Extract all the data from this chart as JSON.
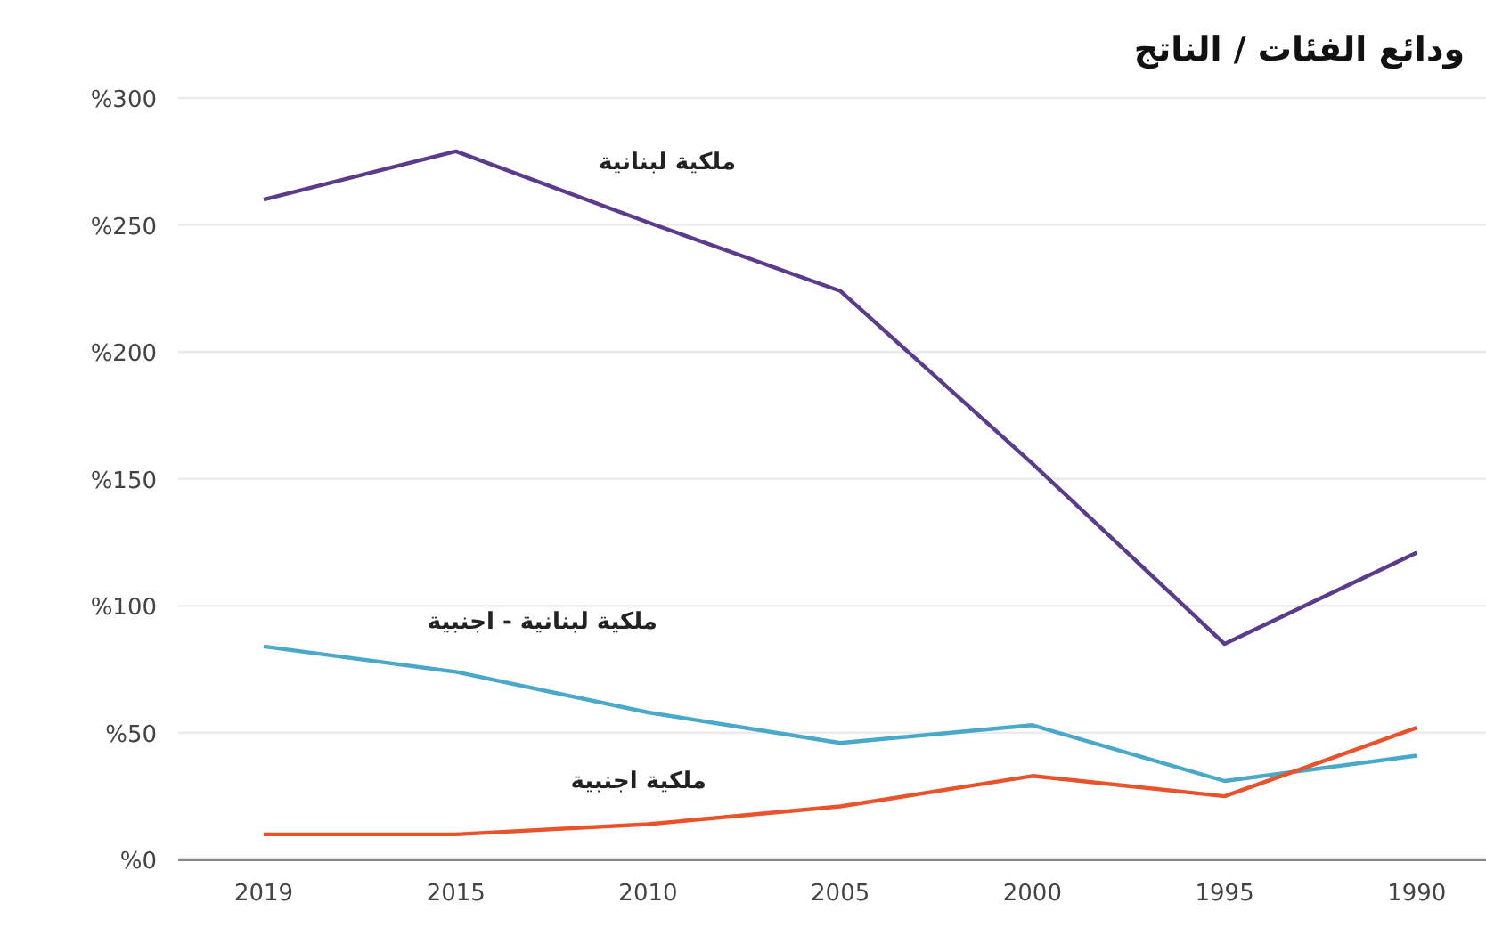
{
  "chart_data": {
    "type": "line",
    "title": "ودائع الفئات / الناتج",
    "categories": [
      "2019",
      "2015",
      "2010",
      "2005",
      "2000",
      "1995",
      "1990"
    ],
    "ylim": [
      0,
      300
    ],
    "yticks": [
      {
        "value": 0,
        "label": "%0"
      },
      {
        "value": 50,
        "label": "%50"
      },
      {
        "value": 100,
        "label": "%100"
      },
      {
        "value": 150,
        "label": "%150"
      },
      {
        "value": 200,
        "label": "%200"
      },
      {
        "value": 250,
        "label": "%250"
      },
      {
        "value": 300,
        "label": "%300"
      }
    ],
    "grid": "y",
    "marker": "none",
    "line_style": "solid",
    "series": [
      {
        "name": "ملكية لبنانية",
        "color": "#5b3b8c",
        "values": [
          260,
          279,
          251,
          224,
          156,
          85,
          121
        ]
      },
      {
        "name": "ملكية لبنانية - اجنبية",
        "color": "#4aa8c9",
        "values": [
          84,
          74,
          58,
          46,
          53,
          31,
          41
        ]
      },
      {
        "name": "ملكية اجنبية",
        "color": "#e8532b",
        "values": [
          10,
          10,
          14,
          21,
          33,
          25,
          52
        ]
      }
    ]
  }
}
